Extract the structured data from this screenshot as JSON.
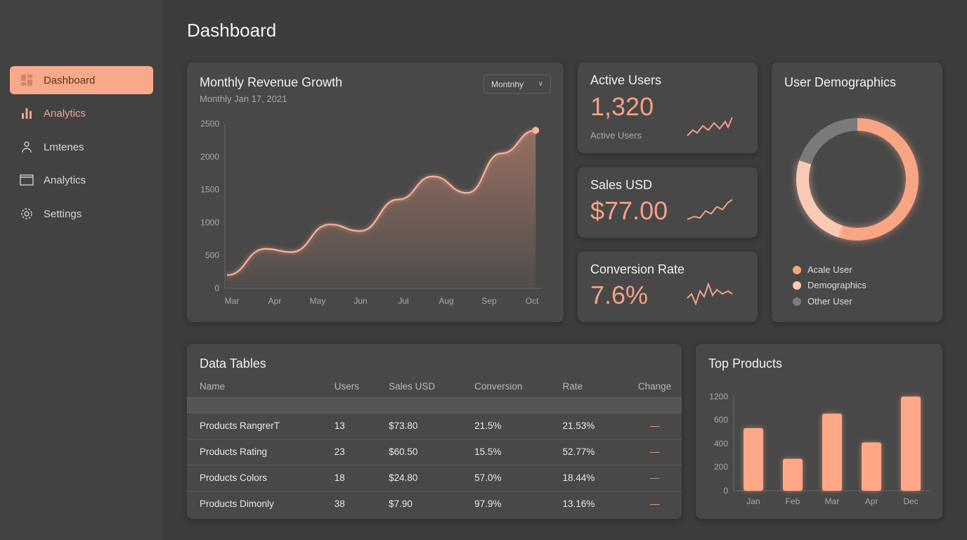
{
  "page": {
    "title": "Dashboard"
  },
  "sidebar": {
    "items": [
      {
        "label": "Dashboard",
        "icon": "dashboard-icon",
        "active": true
      },
      {
        "label": "Analytics",
        "icon": "bar-chart-icon"
      },
      {
        "label": "Lmtenes",
        "icon": "user-icon"
      },
      {
        "label": "Analytics",
        "icon": "window-icon"
      },
      {
        "label": "Settings",
        "icon": "gear-icon"
      }
    ]
  },
  "revenue": {
    "title": "Monthly Revenue Growth",
    "subtitle": "Monthly Jan 17, 2021",
    "dropdown": "Montnhy"
  },
  "chart_data": [
    {
      "type": "area",
      "title": "Monthly Revenue Growth",
      "categories": [
        "Mar",
        "Apr",
        "May",
        "Jun",
        "Jul",
        "Aug",
        "Sep",
        "Oct"
      ],
      "yticks": [
        "0",
        "500",
        "1000",
        "1500",
        "2000",
        "2500"
      ],
      "ylim": [
        0,
        2500
      ],
      "x": [
        0,
        0.9,
        1.5,
        2.4,
        3.1,
        4,
        4.8,
        5.6,
        6.4,
        7.2
      ],
      "values": [
        200,
        600,
        550,
        970,
        870,
        1350,
        1700,
        1450,
        2050,
        2400
      ],
      "color": "#f4a184"
    },
    {
      "type": "bar",
      "title": "Top Products",
      "categories": [
        "Jan",
        "Feb",
        "Mar",
        "Apr",
        "Dec"
      ],
      "yticks": [
        "0",
        "200",
        "400",
        "600",
        "1200"
      ],
      "values": [
        530,
        270,
        760,
        410,
        1200
      ],
      "color": "#ffa887"
    },
    {
      "type": "pie",
      "title": "User Demographics",
      "legend": [
        "Acale User",
        "Demographics",
        "Other User"
      ],
      "values": [
        55,
        25,
        20
      ],
      "colors": [
        "#f8a584",
        "#fcc9b5",
        "#7a7a7a"
      ]
    }
  ],
  "kpis": [
    {
      "title": "Active Users",
      "value": "1,320",
      "label": "Active Users"
    },
    {
      "title": "Sales USD",
      "value": "$77.00"
    },
    {
      "title": "Conversion Rate",
      "value": "7.6%"
    }
  ],
  "demographics": {
    "title": "User Demographics",
    "legend": [
      "Acale User",
      "Demographics",
      "Other User"
    ]
  },
  "table": {
    "title": "Data Tables",
    "columns": [
      "Name",
      "Users",
      "Sales USD",
      "Conversion",
      "Rate",
      "Change"
    ],
    "rows": [
      [
        "Products RangrerT",
        "13",
        "$73.80",
        "21.5%",
        "21.53%",
        "—"
      ],
      [
        "Products Rating",
        "23",
        "$60.50",
        "15.5%",
        "52.77%",
        "—"
      ],
      [
        "Products Colors",
        "18",
        "$24.80",
        "57.0%",
        "18.44%",
        "—"
      ],
      [
        "Products Dimonly",
        "38",
        "$7.90",
        "97.9%",
        "13.16%",
        "—"
      ]
    ]
  },
  "products": {
    "title": "Top Products"
  },
  "colors": {
    "accent": "#f8a98a",
    "background": "#3c3c3c",
    "card": "#484848"
  }
}
